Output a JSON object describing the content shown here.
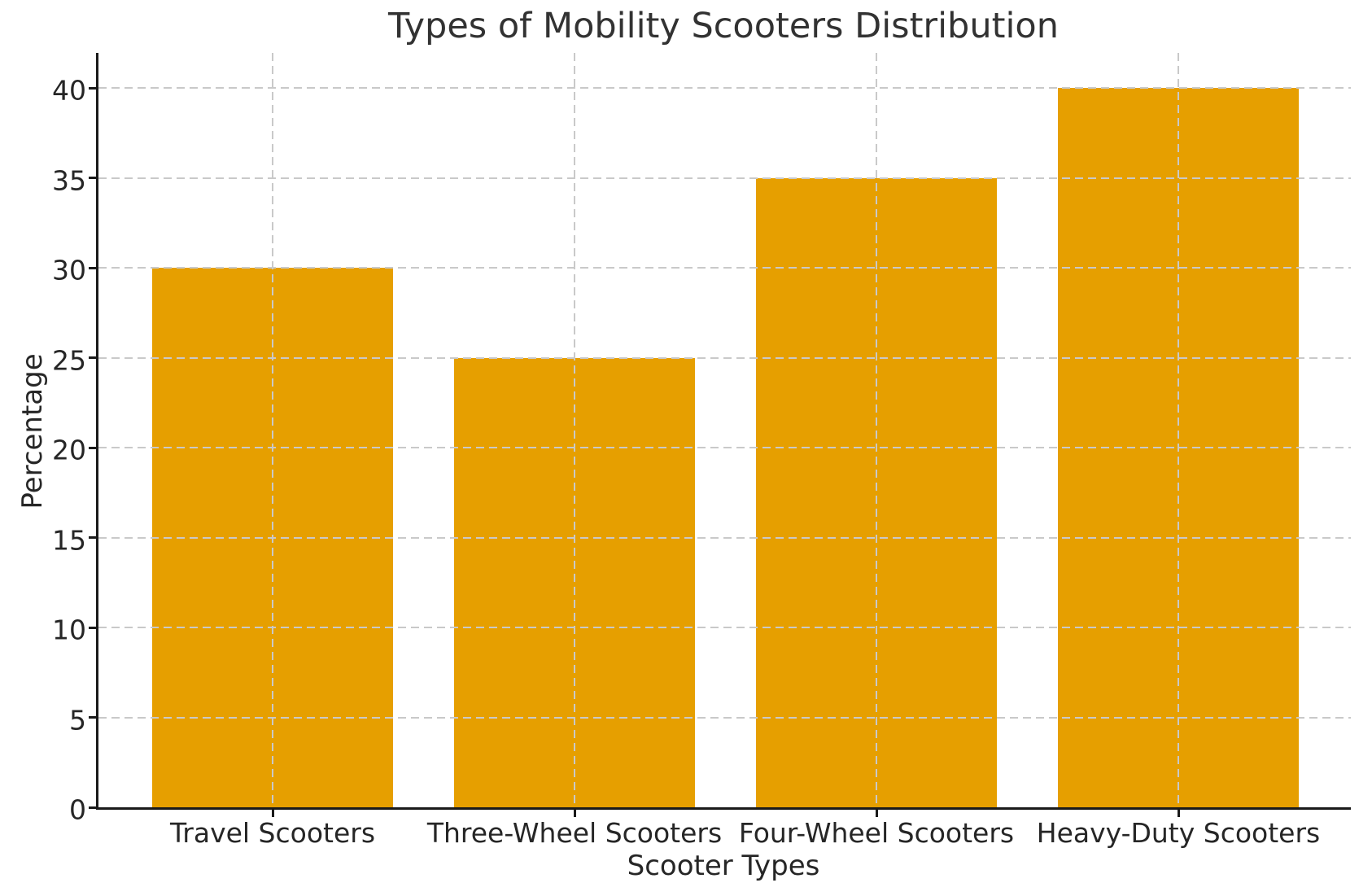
{
  "chart_data": {
    "type": "bar",
    "title": "Types of Mobility Scooters Distribution",
    "xlabel": "Scooter Types",
    "ylabel": "Percentage",
    "categories": [
      "Travel Scooters",
      "Three-Wheel Scooters",
      "Four-Wheel Scooters",
      "Heavy-Duty Scooters"
    ],
    "values": [
      30,
      25,
      35,
      40
    ],
    "yticks": [
      0,
      5,
      10,
      15,
      20,
      25,
      30,
      35,
      40
    ],
    "ylim": [
      0,
      42.1
    ],
    "bar_width_ratio": 0.8,
    "grid": true,
    "grid_style": "dashed",
    "grid_on_top_of_bars": true,
    "legend": null,
    "colors": {
      "bar": "#E69F00",
      "grid": "#c9c9c9",
      "axis": "#1a1a1a",
      "text": "#262626",
      "title": "#323232",
      "background": "#ffffff"
    }
  }
}
